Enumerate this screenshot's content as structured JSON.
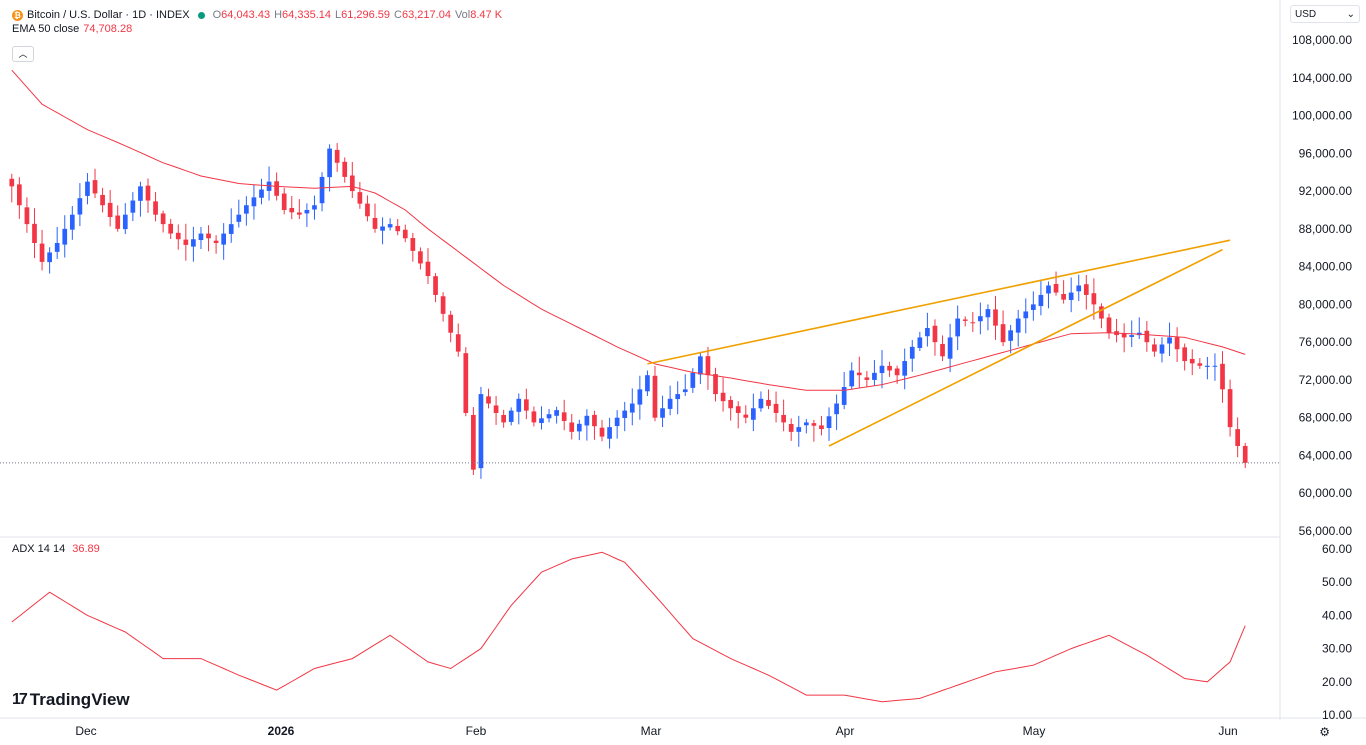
{
  "header": {
    "symbol": "Bitcoin / U.S. Dollar · 1D · INDEX",
    "coin_glyph": "₿",
    "ohlc": [
      {
        "k": "O",
        "v": "64,043.43"
      },
      {
        "k": "H",
        "v": "64,335.14"
      },
      {
        "k": "L",
        "v": "61,296.59"
      },
      {
        "k": "C",
        "v": "63,217.04"
      },
      {
        "k": "Vol",
        "v": "8.47 K"
      }
    ],
    "ema_label": "EMA 50 close",
    "ema_value": "74,708.28",
    "collapse_glyph": "︿",
    "currency": "USD",
    "currency_arrow": "⌄"
  },
  "adx": {
    "label": "ADX 14 14",
    "value": "36.89"
  },
  "brand": {
    "logo": "17",
    "name": "TradingView"
  },
  "gear_glyph": "⚙",
  "colors": {
    "up": "#2962ff",
    "down": "#f23645",
    "ema": "#f23645",
    "trend": "#f0a000",
    "adx": "#f23645",
    "grid": "#f0f3fa"
  },
  "chart_data": [
    {
      "type": "candlestick",
      "x_ticks": [
        "Dec",
        "2026",
        "Feb",
        "Mar",
        "Apr",
        "May",
        "Jun"
      ],
      "y_ticks": [
        "56,000.00",
        "60,000.00",
        "64,000.00",
        "68,000.00",
        "72,000.00",
        "76,000.00",
        "80,000.00",
        "84,000.00",
        "88,000.00",
        "92,000.00",
        "96,000.00",
        "100,000.00",
        "104,000.00",
        "108,000.00"
      ],
      "ylim": [
        54800,
        110800
      ],
      "last_close": 63217.04,
      "anchors_close": [
        [
          0,
          92500
        ],
        [
          2,
          88500
        ],
        [
          4,
          84500
        ],
        [
          6,
          86500
        ],
        [
          8,
          89500
        ],
        [
          10,
          93000
        ],
        [
          12,
          90500
        ],
        [
          14,
          88000
        ],
        [
          17,
          92500
        ],
        [
          19,
          89500
        ],
        [
          21,
          87500
        ],
        [
          23,
          86300
        ],
        [
          25,
          87500
        ],
        [
          27,
          86500
        ],
        [
          29,
          88500
        ],
        [
          31,
          90500
        ],
        [
          34,
          93000
        ],
        [
          36,
          90000
        ],
        [
          38,
          89500
        ],
        [
          40,
          90500
        ],
        [
          42,
          96500
        ],
        [
          45,
          92000
        ],
        [
          48,
          88000
        ],
        [
          50,
          88500
        ],
        [
          52,
          87000
        ],
        [
          55,
          83000
        ],
        [
          57,
          79000
        ],
        [
          59,
          75000
        ],
        [
          60,
          68500
        ],
        [
          61,
          62500
        ],
        [
          62,
          70500
        ],
        [
          65,
          67500
        ],
        [
          67,
          70000
        ],
        [
          69,
          67500
        ],
        [
          72,
          68800
        ],
        [
          74,
          66500
        ],
        [
          76,
          68200
        ],
        [
          78,
          66000
        ],
        [
          80,
          68000
        ],
        [
          82,
          69500
        ],
        [
          84,
          72500
        ],
        [
          85,
          68000
        ],
        [
          87,
          70000
        ],
        [
          89,
          71000
        ],
        [
          91,
          74500
        ],
        [
          93,
          70500
        ],
        [
          95,
          69000
        ],
        [
          97,
          68000
        ],
        [
          99,
          70000
        ],
        [
          101,
          68500
        ],
        [
          103,
          66500
        ],
        [
          105,
          67500
        ],
        [
          107,
          66800
        ],
        [
          109,
          69500
        ],
        [
          111,
          73000
        ],
        [
          113,
          72000
        ],
        [
          115,
          73500
        ],
        [
          117,
          72500
        ],
        [
          119,
          75500
        ],
        [
          121,
          77500
        ],
        [
          123,
          74500
        ],
        [
          125,
          78500
        ],
        [
          127,
          78000
        ],
        [
          129,
          79500
        ],
        [
          131,
          76000
        ],
        [
          133,
          78500
        ],
        [
          135,
          80000
        ],
        [
          137,
          82000
        ],
        [
          139,
          80500
        ],
        [
          141,
          82000
        ],
        [
          143,
          80000
        ],
        [
          145,
          77000
        ],
        [
          147,
          76500
        ],
        [
          149,
          77000
        ],
        [
          151,
          75000
        ],
        [
          153,
          76500
        ],
        [
          155,
          74000
        ],
        [
          157,
          73500
        ],
        [
          159,
          73500
        ],
        [
          160,
          71000
        ],
        [
          161,
          67000
        ],
        [
          162,
          65000
        ],
        [
          163,
          63217.04
        ]
      ],
      "ema50_anchors": [
        [
          0,
          104800
        ],
        [
          4,
          101200
        ],
        [
          10,
          98500
        ],
        [
          15,
          96800
        ],
        [
          20,
          95000
        ],
        [
          25,
          93600
        ],
        [
          30,
          92800
        ],
        [
          35,
          92500
        ],
        [
          40,
          92300
        ],
        [
          45,
          92500
        ],
        [
          48,
          91800
        ],
        [
          52,
          90000
        ],
        [
          55,
          88000
        ],
        [
          60,
          85000
        ],
        [
          65,
          82000
        ],
        [
          70,
          79500
        ],
        [
          75,
          77500
        ],
        [
          80,
          75500
        ],
        [
          85,
          73700
        ],
        [
          90,
          72800
        ],
        [
          95,
          72200
        ],
        [
          100,
          71500
        ],
        [
          105,
          70900
        ],
        [
          110,
          70900
        ],
        [
          115,
          71500
        ],
        [
          120,
          72500
        ],
        [
          125,
          73600
        ],
        [
          130,
          74700
        ],
        [
          135,
          75800
        ],
        [
          140,
          76900
        ],
        [
          145,
          77000
        ],
        [
          150,
          76800
        ],
        [
          155,
          76500
        ],
        [
          160,
          75500
        ],
        [
          163,
          74708.28
        ]
      ],
      "trendlines": [
        {
          "from": [
            84,
            73700
          ],
          "to": [
            161,
            86800
          ]
        },
        {
          "from": [
            108,
            65000
          ],
          "to": [
            160,
            85800
          ]
        }
      ]
    },
    {
      "type": "line",
      "series": [
        {
          "name": "ADX 14 14",
          "anchors": [
            [
              0,
              38
            ],
            [
              5,
              47
            ],
            [
              10,
              40
            ],
            [
              15,
              35
            ],
            [
              20,
              27
            ],
            [
              25,
              27
            ],
            [
              30,
              22
            ],
            [
              35,
              17.5
            ],
            [
              40,
              24
            ],
            [
              45,
              27
            ],
            [
              50,
              34
            ],
            [
              55,
              26
            ],
            [
              58,
              24
            ],
            [
              62,
              30
            ],
            [
              66,
              43
            ],
            [
              70,
              53
            ],
            [
              74,
              57
            ],
            [
              78,
              59
            ],
            [
              81,
              56
            ],
            [
              85,
              46
            ],
            [
              90,
              33
            ],
            [
              95,
              27
            ],
            [
              100,
              22
            ],
            [
              105,
              16
            ],
            [
              110,
              16
            ],
            [
              115,
              14
            ],
            [
              120,
              15
            ],
            [
              125,
              19
            ],
            [
              130,
              23
            ],
            [
              135,
              25
            ],
            [
              140,
              30
            ],
            [
              145,
              34
            ],
            [
              150,
              28
            ],
            [
              155,
              21
            ],
            [
              158,
              20
            ],
            [
              161,
              26
            ],
            [
              163,
              36.89
            ]
          ]
        }
      ],
      "y_ticks": [
        "10.00",
        "20.00",
        "30.00",
        "40.00",
        "50.00",
        "60.00"
      ],
      "ylim": [
        10,
        60
      ]
    }
  ]
}
